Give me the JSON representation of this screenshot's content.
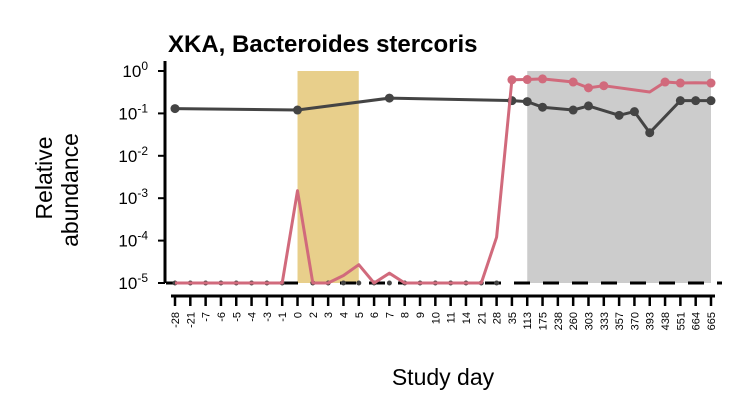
{
  "chart_data": {
    "type": "line",
    "title": "XKA, Bacteroides stercoris",
    "xlabel": "Study day",
    "ylabel": "Relative abundance",
    "ylabel_lines": [
      "Relative",
      "abundance"
    ],
    "y_scale": "log10",
    "ylim": [
      1e-05,
      1
    ],
    "y_ticks": [
      {
        "value": 1,
        "base": "10",
        "exp": "0"
      },
      {
        "value": 0.1,
        "base": "10",
        "exp": "-1"
      },
      {
        "value": 0.01,
        "base": "10",
        "exp": "-2"
      },
      {
        "value": 0.001,
        "base": "10",
        "exp": "-3"
      },
      {
        "value": 0.0001,
        "base": "10",
        "exp": "-4"
      },
      {
        "value": 1e-05,
        "base": "10",
        "exp": "-5"
      }
    ],
    "categories": [
      "-28",
      "-21",
      "-7",
      "-6",
      "-5",
      "-4",
      "-3",
      "-1",
      "0",
      "2",
      "3",
      "4",
      "5",
      "6",
      "7",
      "8",
      "9",
      "10",
      "11",
      "14",
      "21",
      "28",
      "35",
      "113",
      "175",
      "238",
      "260",
      "303",
      "333",
      "357",
      "370",
      "393",
      "438",
      "551",
      "664",
      "665"
    ],
    "shaded_regions": [
      {
        "from": "0",
        "to": "5",
        "color": "#e8cf8b"
      },
      {
        "from": "113",
        "to": "665",
        "color": "#cccccc"
      }
    ],
    "detection_limit": 1e-05,
    "series": [
      {
        "color": "#444444",
        "style": "solid",
        "points": [
          {
            "x": "-28",
            "y": 0.13
          },
          {
            "x": "0",
            "y": 0.12
          },
          {
            "x": "7",
            "y": 0.23
          },
          {
            "x": "35",
            "y": 0.2
          },
          {
            "x": "113",
            "y": 0.19
          },
          {
            "x": "175",
            "y": 0.14
          },
          {
            "x": "260",
            "y": 0.12
          },
          {
            "x": "303",
            "y": 0.15
          },
          {
            "x": "357",
            "y": 0.09
          },
          {
            "x": "370",
            "y": 0.11
          },
          {
            "x": "393",
            "y": 0.035
          },
          {
            "x": "551",
            "y": 0.2
          },
          {
            "x": "664",
            "y": 0.2
          },
          {
            "x": "665",
            "y": 0.2
          }
        ],
        "detection_floor_points": [
          "-28",
          "-21",
          "-7",
          "-6",
          "-5",
          "-4",
          "-3",
          "-1",
          "2",
          "3",
          "4",
          "5",
          "6",
          "7",
          "8",
          "9",
          "10",
          "11",
          "14",
          "21",
          "28"
        ]
      },
      {
        "color": "#d16a7c",
        "style": "solid",
        "points": [
          {
            "x": "-28",
            "y": 1e-05
          },
          {
            "x": "-21",
            "y": 1e-05
          },
          {
            "x": "-7",
            "y": 1e-05
          },
          {
            "x": "-6",
            "y": 1e-05
          },
          {
            "x": "-5",
            "y": 1e-05
          },
          {
            "x": "-4",
            "y": 1e-05
          },
          {
            "x": "-3",
            "y": 1e-05
          },
          {
            "x": "-1",
            "y": 1e-05
          },
          {
            "x": "0",
            "y": 0.0015
          },
          {
            "x": "2",
            "y": 1e-05
          },
          {
            "x": "3",
            "y": 1e-05
          },
          {
            "x": "4",
            "y": 1.5e-05
          },
          {
            "x": "5",
            "y": 2.7e-05
          },
          {
            "x": "6",
            "y": 1e-05
          },
          {
            "x": "7",
            "y": 1.7e-05
          },
          {
            "x": "8",
            "y": 1e-05
          },
          {
            "x": "9",
            "y": 1e-05
          },
          {
            "x": "10",
            "y": 1e-05
          },
          {
            "x": "11",
            "y": 1e-05
          },
          {
            "x": "14",
            "y": 1e-05
          },
          {
            "x": "21",
            "y": 1e-05
          },
          {
            "x": "28",
            "y": 0.00012
          },
          {
            "x": "35",
            "y": 0.62
          },
          {
            "x": "113",
            "y": 0.63
          },
          {
            "x": "175",
            "y": 0.65
          },
          {
            "x": "260",
            "y": 0.55
          },
          {
            "x": "303",
            "y": 0.4
          },
          {
            "x": "333",
            "y": 0.45
          },
          {
            "x": "393",
            "y": 0.32
          },
          {
            "x": "438",
            "y": 0.55
          },
          {
            "x": "551",
            "y": 0.52
          },
          {
            "x": "664",
            "y": 0.53
          },
          {
            "x": "665",
            "y": 0.52
          }
        ],
        "markers": [
          "35",
          "113",
          "175",
          "260",
          "303",
          "333",
          "438",
          "551",
          "665"
        ]
      }
    ]
  }
}
